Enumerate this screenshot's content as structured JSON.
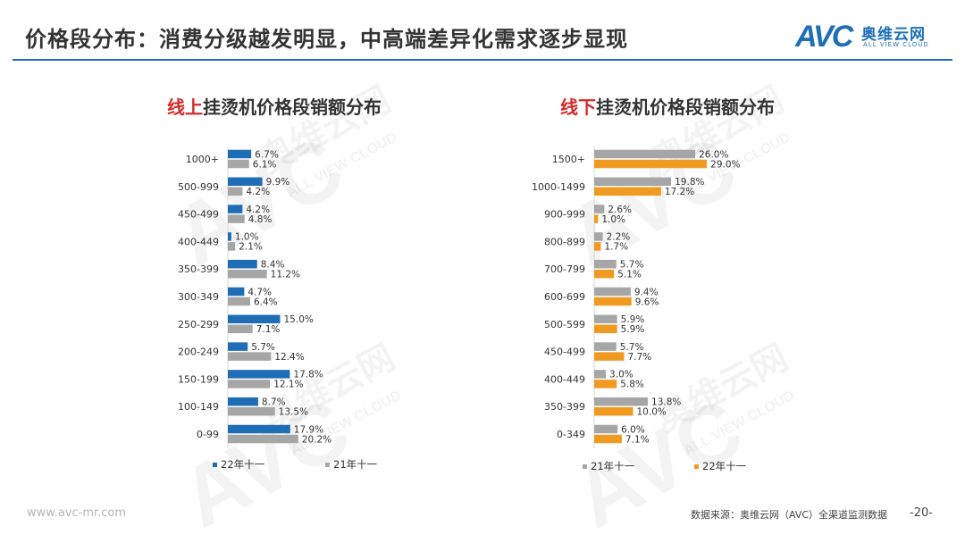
{
  "page": {
    "title": "价格段分布：消费分级越发明显，中高端差异化需求逐步显现",
    "logo": {
      "mark": "AVC",
      "cn": "奥维云网",
      "en": "ALL VIEW CLOUD"
    },
    "footer_url": "www.avc-mr.com",
    "footer_source": "数据来源：奥维云网（AVC）全渠道监测数据",
    "page_number": "-20-",
    "watermark": {
      "mark": "AVC",
      "cn": "奥维云网",
      "en": "ALL VIEW CLOUD"
    }
  },
  "colors": {
    "blue": "#1f6db5",
    "gray": "#a6a6a6",
    "orange": "#f19a22",
    "red": "#d42a2a",
    "rule": "#1e6fb8"
  },
  "chart_data": [
    {
      "type": "bar",
      "orientation": "horizontal",
      "title_highlight": "线上",
      "title_rest": "挂烫机价格段销额分布",
      "categories": [
        "1000+",
        "500-999",
        "450-499",
        "400-449",
        "350-399",
        "300-349",
        "250-299",
        "200-249",
        "150-199",
        "100-149",
        "0-99"
      ],
      "series": [
        {
          "name": "22年十一",
          "color": "#1f6db5",
          "values": [
            6.7,
            9.9,
            4.2,
            1.0,
            8.4,
            4.7,
            15.0,
            5.7,
            17.8,
            8.7,
            17.9
          ],
          "labels": [
            "6.7%",
            "9.9%",
            "4.2%",
            "1.0%",
            "8.4%",
            "4.7%",
            "15.0%",
            "5.7%",
            "17.8%",
            "8.7%",
            "17.9%"
          ]
        },
        {
          "name": "21年十一",
          "color": "#a6a6a6",
          "values": [
            6.1,
            4.2,
            4.8,
            2.1,
            11.2,
            6.4,
            7.1,
            12.4,
            12.1,
            13.5,
            20.2
          ],
          "labels": [
            "6.1%",
            "4.2%",
            "4.8%",
            "2.1%",
            "11.2%",
            "6.4%",
            "7.1%",
            "12.4%",
            "12.1%",
            "13.5%",
            "20.2%"
          ]
        }
      ],
      "unit": "%",
      "legend_position": "bottom"
    },
    {
      "type": "bar",
      "orientation": "horizontal",
      "title_highlight": "线下",
      "title_rest": "挂烫机价格段销额分布",
      "categories": [
        "1500+",
        "1000-1499",
        "900-999",
        "800-899",
        "700-799",
        "600-699",
        "500-599",
        "450-499",
        "400-449",
        "350-399",
        "0-349"
      ],
      "series": [
        {
          "name": "21年十一",
          "color": "#a6a6a6",
          "values": [
            26.0,
            19.8,
            2.6,
            2.2,
            5.7,
            9.4,
            5.9,
            5.7,
            3.0,
            13.8,
            6.0
          ],
          "labels": [
            "26.0%",
            "19.8%",
            "2.6%",
            "2.2%",
            "5.7%",
            "9.4%",
            "5.9%",
            "5.7%",
            "3.0%",
            "13.8%",
            "6.0%"
          ]
        },
        {
          "name": "22年十一",
          "color": "#f19a22",
          "values": [
            29.0,
            17.2,
            1.0,
            1.7,
            5.1,
            9.6,
            5.9,
            7.7,
            5.8,
            10.0,
            7.1
          ],
          "labels": [
            "29.0%",
            "17.2%",
            "1.0%",
            "1.7%",
            "5.1%",
            "9.6%",
            "5.9%",
            "7.7%",
            "5.8%",
            "10.0%",
            "7.1%"
          ]
        }
      ],
      "unit": "%",
      "legend_position": "bottom"
    }
  ]
}
